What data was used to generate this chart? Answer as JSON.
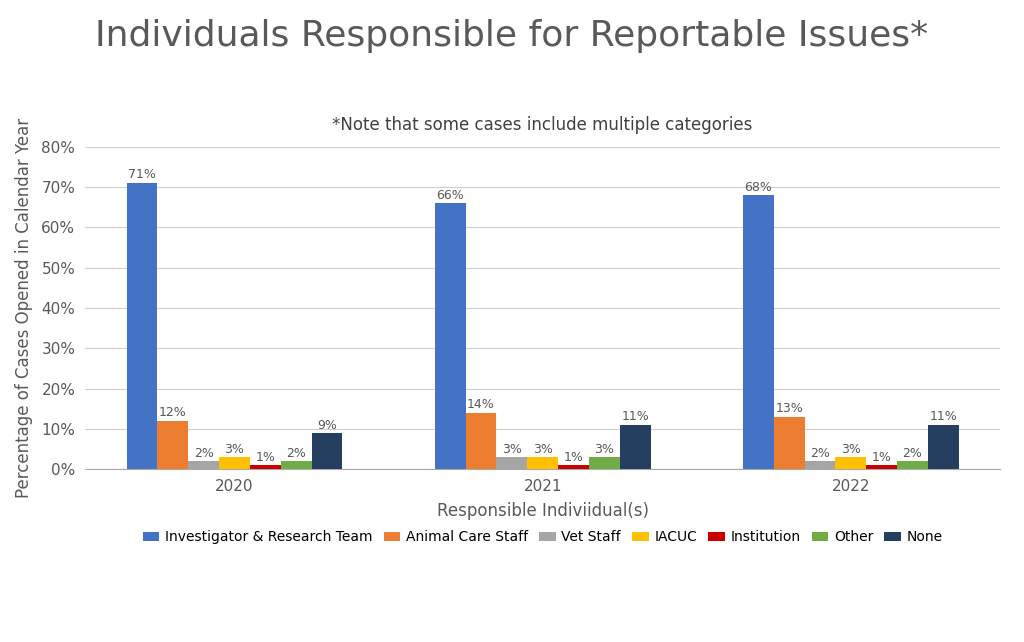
{
  "title": "Individuals Responsible for Reportable Issues*",
  "subtitle": "*Note that some cases include multiple categories",
  "xlabel": "Responsible Indiviidual(s)",
  "ylabel": "Percentage of Cases Opened in Calendar Year",
  "years": [
    "2020",
    "2021",
    "2022"
  ],
  "categories": [
    "Investigator & Research Team",
    "Animal Care Staff",
    "Vet Staff",
    "IACUC",
    "Institution",
    "Other",
    "None"
  ],
  "colors": [
    "#4472C4",
    "#ED7D31",
    "#A5A5A5",
    "#FFC000",
    "#CC0000",
    "#70AD47",
    "#243F60"
  ],
  "values": {
    "Investigator & Research Team": [
      71,
      66,
      68
    ],
    "Animal Care Staff": [
      12,
      14,
      13
    ],
    "Vet Staff": [
      2,
      3,
      2
    ],
    "IACUC": [
      3,
      3,
      3
    ],
    "Institution": [
      1,
      1,
      1
    ],
    "Other": [
      2,
      3,
      2
    ],
    "None": [
      9,
      11,
      11
    ]
  },
  "ylim": [
    0,
    80
  ],
  "yticks": [
    0,
    10,
    20,
    30,
    40,
    50,
    60,
    70,
    80
  ],
  "ytick_labels": [
    "0%",
    "10%",
    "20%",
    "30%",
    "40%",
    "50%",
    "60%",
    "70%",
    "80%"
  ],
  "background_color": "#FFFFFF",
  "title_fontsize": 26,
  "subtitle_fontsize": 12,
  "label_fontsize": 12,
  "tick_fontsize": 11,
  "bar_label_fontsize": 9,
  "legend_fontsize": 10,
  "title_color": "#595959",
  "subtitle_color": "#404040",
  "axis_text_color": "#595959"
}
